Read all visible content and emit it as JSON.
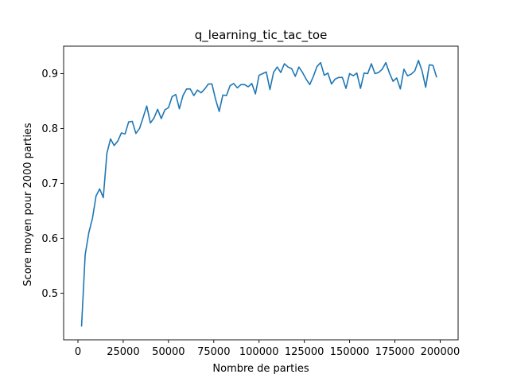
{
  "chart_data": {
    "type": "line",
    "title": "q_learning_tic_tac_toe",
    "xlabel": "Nombre de parties",
    "ylabel": "Score moyen pour 2000 parties",
    "xlim": [
      -7900,
      209900
    ],
    "ylim": [
      0.415,
      0.95
    ],
    "xticks": [
      0,
      25000,
      50000,
      75000,
      100000,
      125000,
      150000,
      175000,
      200000
    ],
    "yticks": [
      0.5,
      0.6,
      0.7,
      0.8,
      0.9
    ],
    "ytick_labels": [
      "0.5",
      "0.6",
      "0.7",
      "0.8",
      "0.9"
    ],
    "grid": false,
    "series": [
      {
        "color": "#1f77b4",
        "x": [
          2000,
          4000,
          6000,
          8000,
          10000,
          12000,
          14000,
          16000,
          18000,
          20000,
          22000,
          24000,
          26000,
          28000,
          30000,
          32000,
          34000,
          36000,
          38000,
          40000,
          42000,
          44000,
          46000,
          48000,
          50000,
          52000,
          54000,
          56000,
          58000,
          60000,
          62000,
          64000,
          66000,
          68000,
          70000,
          72000,
          74000,
          76000,
          78000,
          80000,
          82000,
          84000,
          86000,
          88000,
          90000,
          92000,
          94000,
          96000,
          98000,
          100000,
          102000,
          104000,
          106000,
          108000,
          110000,
          112000,
          114000,
          116000,
          118000,
          120000,
          122000,
          124000,
          126000,
          128000,
          130000,
          132000,
          134000,
          136000,
          138000,
          140000,
          142000,
          144000,
          146000,
          148000,
          150000,
          152000,
          154000,
          156000,
          158000,
          160000,
          162000,
          164000,
          166000,
          168000,
          170000,
          172000,
          174000,
          176000,
          178000,
          180000,
          182000,
          184000,
          186000,
          188000,
          190000,
          192000,
          194000,
          196000,
          198000
        ],
        "y": [
          0.44,
          0.57,
          0.61,
          0.636,
          0.677,
          0.69,
          0.674,
          0.755,
          0.781,
          0.769,
          0.777,
          0.792,
          0.79,
          0.812,
          0.813,
          0.791,
          0.8,
          0.82,
          0.841,
          0.81,
          0.819,
          0.835,
          0.818,
          0.834,
          0.838,
          0.858,
          0.862,
          0.836,
          0.86,
          0.872,
          0.872,
          0.86,
          0.87,
          0.865,
          0.872,
          0.881,
          0.881,
          0.853,
          0.831,
          0.861,
          0.86,
          0.878,
          0.882,
          0.874,
          0.88,
          0.88,
          0.876,
          0.882,
          0.863,
          0.897,
          0.9,
          0.903,
          0.871,
          0.902,
          0.912,
          0.902,
          0.918,
          0.912,
          0.909,
          0.895,
          0.912,
          0.902,
          0.89,
          0.88,
          0.895,
          0.913,
          0.92,
          0.897,
          0.901,
          0.881,
          0.89,
          0.893,
          0.893,
          0.873,
          0.9,
          0.896,
          0.901,
          0.873,
          0.901,
          0.9,
          0.918,
          0.9,
          0.902,
          0.908,
          0.92,
          0.901,
          0.886,
          0.892,
          0.872,
          0.908,
          0.896,
          0.899,
          0.905,
          0.924,
          0.905,
          0.875,
          0.916,
          0.915,
          0.894
        ]
      }
    ]
  }
}
